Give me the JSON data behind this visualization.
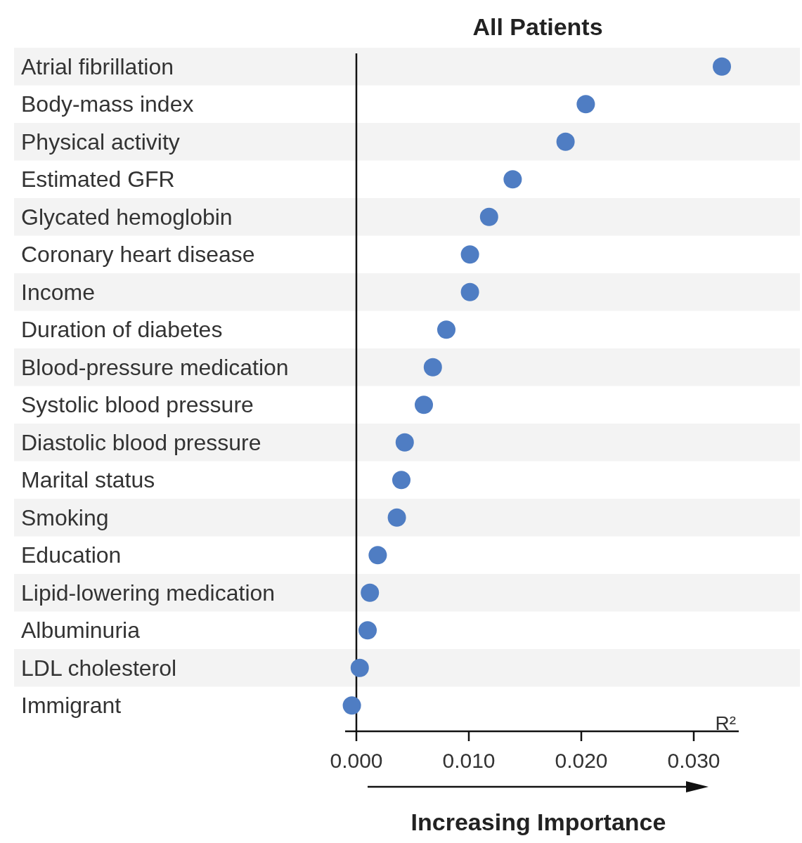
{
  "chart_data": {
    "type": "scatter",
    "orientation": "horizontal",
    "title": "All Patients",
    "xlabel": "R²",
    "categories": [
      "Atrial fibrillation",
      "Body-mass index",
      "Physical activity",
      "Estimated GFR",
      "Glycated hemoglobin",
      "Coronary heart disease",
      "Income",
      "Duration of diabetes",
      "Blood-pressure medication",
      "Systolic blood pressure",
      "Diastolic blood pressure",
      "Marital status",
      "Smoking",
      "Education",
      "Lipid-lowering medication",
      "Albuminuria",
      "LDL cholesterol",
      "Immigrant"
    ],
    "values": [
      0.0325,
      0.0204,
      0.0186,
      0.0139,
      0.0118,
      0.0101,
      0.0101,
      0.008,
      0.0068,
      0.006,
      0.0043,
      0.004,
      0.0036,
      0.0019,
      0.0012,
      0.001,
      0.0003,
      -0.0004
    ],
    "color": "#4f7dc3",
    "marker": "circle",
    "xlim": [
      -0.001,
      0.034
    ],
    "xticks": [
      {
        "value": 0,
        "label": "0.000"
      },
      {
        "value": 0.01,
        "label": "0.010"
      },
      {
        "value": 0.02,
        "label": "0.020"
      },
      {
        "value": 0.03,
        "label": "0.030"
      }
    ],
    "ref_lines": [
      {
        "axis": "x",
        "value": 0
      }
    ],
    "annotations": [
      "Increasing Importance"
    ]
  }
}
